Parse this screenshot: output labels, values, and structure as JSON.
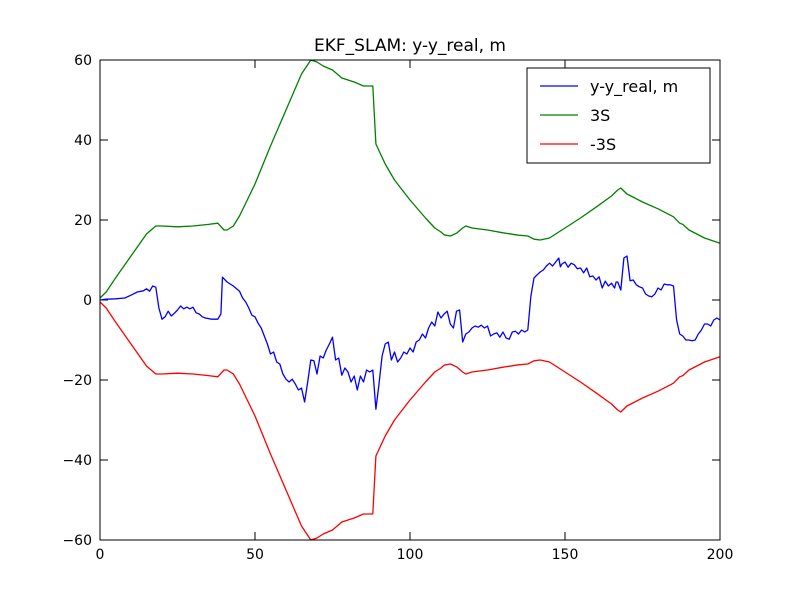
{
  "chart_data": {
    "type": "line",
    "title": "EKF_SLAM: y-y_real, m",
    "xlabel": "",
    "ylabel": "",
    "xlim": [
      0,
      200
    ],
    "ylim": [
      -60,
      60
    ],
    "x_ticks": [
      0,
      50,
      100,
      150,
      200
    ],
    "y_ticks": [
      -60,
      -40,
      -20,
      0,
      20,
      40,
      60
    ],
    "x_tick_labels": [
      "0",
      "50",
      "100",
      "150",
      "200"
    ],
    "y_tick_labels": [
      "−60",
      "−40",
      "−20",
      "0",
      "20",
      "40",
      "60"
    ],
    "grid": false,
    "legend_position": "top-right",
    "series": [
      {
        "name": "y-y_real, m",
        "color": "#0000ff",
        "points": [
          [
            0,
            0
          ],
          [
            2,
            0.2
          ],
          [
            5,
            0.3
          ],
          [
            8,
            0.5
          ],
          [
            10,
            1.2
          ],
          [
            12,
            2
          ],
          [
            14,
            2.3
          ],
          [
            15,
            2.8
          ],
          [
            16,
            2.2
          ],
          [
            17,
            3.5
          ],
          [
            18,
            3.2
          ],
          [
            19,
            -2
          ],
          [
            20,
            -4.8
          ],
          [
            21,
            -4.2
          ],
          [
            22,
            -2.8
          ],
          [
            23,
            -4
          ],
          [
            24,
            -3.3
          ],
          [
            25,
            -2.5
          ],
          [
            26,
            -1.5
          ],
          [
            27,
            -2.2
          ],
          [
            28,
            -1.8
          ],
          [
            29,
            -2.2
          ],
          [
            30,
            -1.8
          ],
          [
            31,
            -3.2
          ],
          [
            32,
            -3.5
          ],
          [
            33,
            -4.2
          ],
          [
            34,
            -4.5
          ],
          [
            36,
            -4.8
          ],
          [
            38,
            -4.8
          ],
          [
            39,
            -3.5
          ],
          [
            39.5,
            5.7
          ],
          [
            41,
            4.5
          ],
          [
            43,
            3.5
          ],
          [
            45,
            2.2
          ],
          [
            46,
            0.5
          ],
          [
            47,
            -0.5
          ],
          [
            48,
            -2
          ],
          [
            49,
            -3.8
          ],
          [
            50,
            -4.2
          ],
          [
            51,
            -5.8
          ],
          [
            52,
            -7
          ],
          [
            53,
            -9
          ],
          [
            54,
            -11
          ],
          [
            55,
            -13.5
          ],
          [
            56,
            -13
          ],
          [
            57,
            -15.5
          ],
          [
            58,
            -16
          ],
          [
            59,
            -18.5
          ],
          [
            60,
            -19.8
          ],
          [
            61,
            -20.5
          ],
          [
            62,
            -19.8
          ],
          [
            63,
            -21
          ],
          [
            64,
            -22.5
          ],
          [
            65,
            -22
          ],
          [
            66,
            -25.5
          ],
          [
            67,
            -20.5
          ],
          [
            68,
            -15
          ],
          [
            69,
            -15.2
          ],
          [
            70,
            -18.5
          ],
          [
            71,
            -14
          ],
          [
            72,
            -14.5
          ],
          [
            73,
            -12.5
          ],
          [
            74,
            -11
          ],
          [
            75,
            -9.3
          ],
          [
            76,
            -15
          ],
          [
            77,
            -14.5
          ],
          [
            78,
            -18.8
          ],
          [
            79,
            -17
          ],
          [
            80,
            -18
          ],
          [
            81,
            -20.5
          ],
          [
            82,
            -19
          ],
          [
            83,
            -22.5
          ],
          [
            84,
            -19
          ],
          [
            85,
            -20.5
          ],
          [
            86,
            -17.5
          ],
          [
            87,
            -18
          ],
          [
            88,
            -17.5
          ],
          [
            89,
            -27.3
          ],
          [
            90,
            -21
          ],
          [
            91,
            -14
          ],
          [
            92,
            -11
          ],
          [
            93,
            -10.5
          ],
          [
            94,
            -15
          ],
          [
            95,
            -13
          ],
          [
            96,
            -15.5
          ],
          [
            97,
            -14.5
          ],
          [
            98,
            -13
          ],
          [
            99,
            -13.5
          ],
          [
            100,
            -12
          ],
          [
            101,
            -13
          ],
          [
            102,
            -10.5
          ],
          [
            103,
            -10
          ],
          [
            104,
            -8.5
          ],
          [
            105,
            -9.5
          ],
          [
            106,
            -7
          ],
          [
            107,
            -5.5
          ],
          [
            108,
            -6.5
          ],
          [
            109,
            -3
          ],
          [
            110,
            -4.5
          ],
          [
            111,
            -3.5
          ],
          [
            112,
            -2.8
          ],
          [
            113,
            -6
          ],
          [
            114,
            -7
          ],
          [
            115,
            -2.8
          ],
          [
            116,
            -2.5
          ],
          [
            117,
            -10.5
          ],
          [
            118,
            -8.5
          ],
          [
            119,
            -8
          ],
          [
            120,
            -7
          ],
          [
            121,
            -6.5
          ],
          [
            122,
            -6.8
          ],
          [
            123,
            -6.3
          ],
          [
            124,
            -7
          ],
          [
            125,
            -6.5
          ],
          [
            126,
            -9
          ],
          [
            127,
            -8.5
          ],
          [
            128,
            -8.2
          ],
          [
            129,
            -9.3
          ],
          [
            130,
            -8
          ],
          [
            131,
            -9.5
          ],
          [
            132,
            -9.8
          ],
          [
            133,
            -8
          ],
          [
            134,
            -7.8
          ],
          [
            135,
            -8.5
          ],
          [
            136,
            -7.5
          ],
          [
            137,
            -8
          ],
          [
            138,
            -7.5
          ],
          [
            139,
            1
          ],
          [
            140,
            5.5
          ],
          [
            141,
            6.3
          ],
          [
            142,
            7
          ],
          [
            143,
            7.5
          ],
          [
            144,
            8.5
          ],
          [
            145,
            9.2
          ],
          [
            146,
            8.5
          ],
          [
            147,
            9.5
          ],
          [
            148,
            10.5
          ],
          [
            148.5,
            8.3
          ],
          [
            149,
            9
          ],
          [
            150,
            9.5
          ],
          [
            151,
            8.2
          ],
          [
            152,
            9.2
          ],
          [
            153,
            8.8
          ],
          [
            154,
            7.8
          ],
          [
            155,
            8
          ],
          [
            156,
            6.8
          ],
          [
            157,
            8
          ],
          [
            158,
            5.8
          ],
          [
            159,
            6
          ],
          [
            160,
            5
          ],
          [
            161,
            5.8
          ],
          [
            162,
            3
          ],
          [
            163,
            4.7
          ],
          [
            164,
            3.5
          ],
          [
            165,
            4.2
          ],
          [
            166,
            3
          ],
          [
            166.5,
            4.5
          ],
          [
            167,
            4.5
          ],
          [
            168,
            2.5
          ],
          [
            169,
            10.5
          ],
          [
            170,
            11
          ],
          [
            171,
            4.8
          ],
          [
            172,
            5
          ],
          [
            173,
            3.8
          ],
          [
            174,
            3.3
          ],
          [
            175,
            3
          ],
          [
            176,
            1.5
          ],
          [
            177,
            1
          ],
          [
            178,
            0.8
          ],
          [
            179,
            1.5
          ],
          [
            180,
            3
          ],
          [
            181,
            2.5
          ],
          [
            182,
            4
          ],
          [
            183,
            3.8
          ],
          [
            184,
            3.8
          ],
          [
            185,
            3.5
          ],
          [
            186,
            -5
          ],
          [
            187,
            -8.5
          ],
          [
            188,
            -9
          ],
          [
            189,
            -10
          ],
          [
            190,
            -10
          ],
          [
            191,
            -10.2
          ],
          [
            192,
            -10
          ],
          [
            193,
            -8.5
          ],
          [
            194,
            -7.5
          ],
          [
            195,
            -6
          ],
          [
            196,
            -6
          ],
          [
            197,
            -6.5
          ],
          [
            198,
            -5
          ],
          [
            199,
            -4.5
          ],
          [
            200,
            -5
          ]
        ]
      },
      {
        "name": "3S",
        "color": "#008000",
        "points": [
          [
            0,
            0.5
          ],
          [
            2,
            2
          ],
          [
            5,
            5.5
          ],
          [
            10,
            11
          ],
          [
            15,
            16.5
          ],
          [
            18,
            18.5
          ],
          [
            20,
            18.5
          ],
          [
            25,
            18.3
          ],
          [
            30,
            18.5
          ],
          [
            35,
            18.9
          ],
          [
            38,
            19.2
          ],
          [
            40,
            17.5
          ],
          [
            41,
            17.5
          ],
          [
            43,
            18.5
          ],
          [
            45,
            21
          ],
          [
            50,
            29
          ],
          [
            55,
            38.5
          ],
          [
            60,
            47.5
          ],
          [
            65,
            56.5
          ],
          [
            68,
            60
          ],
          [
            70,
            59.5
          ],
          [
            72,
            58.5
          ],
          [
            75,
            57.5
          ],
          [
            78,
            55.5
          ],
          [
            82,
            54.5
          ],
          [
            85,
            53.5
          ],
          [
            88,
            53.5
          ],
          [
            89,
            39
          ],
          [
            92,
            34
          ],
          [
            95,
            30
          ],
          [
            100,
            25
          ],
          [
            105,
            20.5
          ],
          [
            108,
            18
          ],
          [
            110,
            17
          ],
          [
            111,
            16.3
          ],
          [
            113,
            16
          ],
          [
            115,
            16.7
          ],
          [
            117,
            18
          ],
          [
            118,
            18.5
          ],
          [
            120,
            18
          ],
          [
            125,
            17.5
          ],
          [
            130,
            16.8
          ],
          [
            135,
            16.2
          ],
          [
            138,
            16
          ],
          [
            140,
            15.2
          ],
          [
            142,
            15
          ],
          [
            145,
            15.5
          ],
          [
            150,
            18
          ],
          [
            155,
            20.5
          ],
          [
            160,
            23.2
          ],
          [
            165,
            26
          ],
          [
            167,
            27.5
          ],
          [
            168,
            28
          ],
          [
            170,
            26.5
          ],
          [
            175,
            24.5
          ],
          [
            180,
            22.8
          ],
          [
            185,
            20.8
          ],
          [
            187,
            19.2
          ],
          [
            188,
            18.9
          ],
          [
            190,
            17.5
          ],
          [
            195,
            15.5
          ],
          [
            200,
            14.2
          ]
        ]
      },
      {
        "name": "-3S",
        "color": "#ff0000",
        "points": [
          [
            0,
            -0.5
          ],
          [
            2,
            -2
          ],
          [
            5,
            -5.5
          ],
          [
            10,
            -11
          ],
          [
            15,
            -16.5
          ],
          [
            18,
            -18.5
          ],
          [
            20,
            -18.5
          ],
          [
            25,
            -18.3
          ],
          [
            30,
            -18.5
          ],
          [
            35,
            -18.9
          ],
          [
            38,
            -19.2
          ],
          [
            40,
            -17.5
          ],
          [
            41,
            -17.5
          ],
          [
            43,
            -18.5
          ],
          [
            45,
            -21
          ],
          [
            50,
            -29
          ],
          [
            55,
            -38.5
          ],
          [
            60,
            -47.5
          ],
          [
            65,
            -56.5
          ],
          [
            68,
            -60
          ],
          [
            70,
            -59.5
          ],
          [
            72,
            -58.5
          ],
          [
            75,
            -57.5
          ],
          [
            78,
            -55.5
          ],
          [
            82,
            -54.5
          ],
          [
            85,
            -53.5
          ],
          [
            88,
            -53.5
          ],
          [
            89,
            -39
          ],
          [
            92,
            -34
          ],
          [
            95,
            -30
          ],
          [
            100,
            -25
          ],
          [
            105,
            -20.5
          ],
          [
            108,
            -18
          ],
          [
            110,
            -17
          ],
          [
            111,
            -16.3
          ],
          [
            113,
            -16
          ],
          [
            115,
            -16.7
          ],
          [
            117,
            -18
          ],
          [
            118,
            -18.5
          ],
          [
            120,
            -18
          ],
          [
            125,
            -17.5
          ],
          [
            130,
            -16.8
          ],
          [
            135,
            -16.2
          ],
          [
            138,
            -16
          ],
          [
            140,
            -15.2
          ],
          [
            142,
            -15
          ],
          [
            145,
            -15.5
          ],
          [
            150,
            -18
          ],
          [
            155,
            -20.5
          ],
          [
            160,
            -23.2
          ],
          [
            165,
            -26
          ],
          [
            167,
            -27.5
          ],
          [
            168,
            -28
          ],
          [
            170,
            -26.5
          ],
          [
            175,
            -24.5
          ],
          [
            180,
            -22.8
          ],
          [
            185,
            -20.8
          ],
          [
            187,
            -19.2
          ],
          [
            188,
            -18.9
          ],
          [
            190,
            -17.5
          ],
          [
            195,
            -15.5
          ],
          [
            200,
            -14.2
          ]
        ]
      }
    ]
  }
}
